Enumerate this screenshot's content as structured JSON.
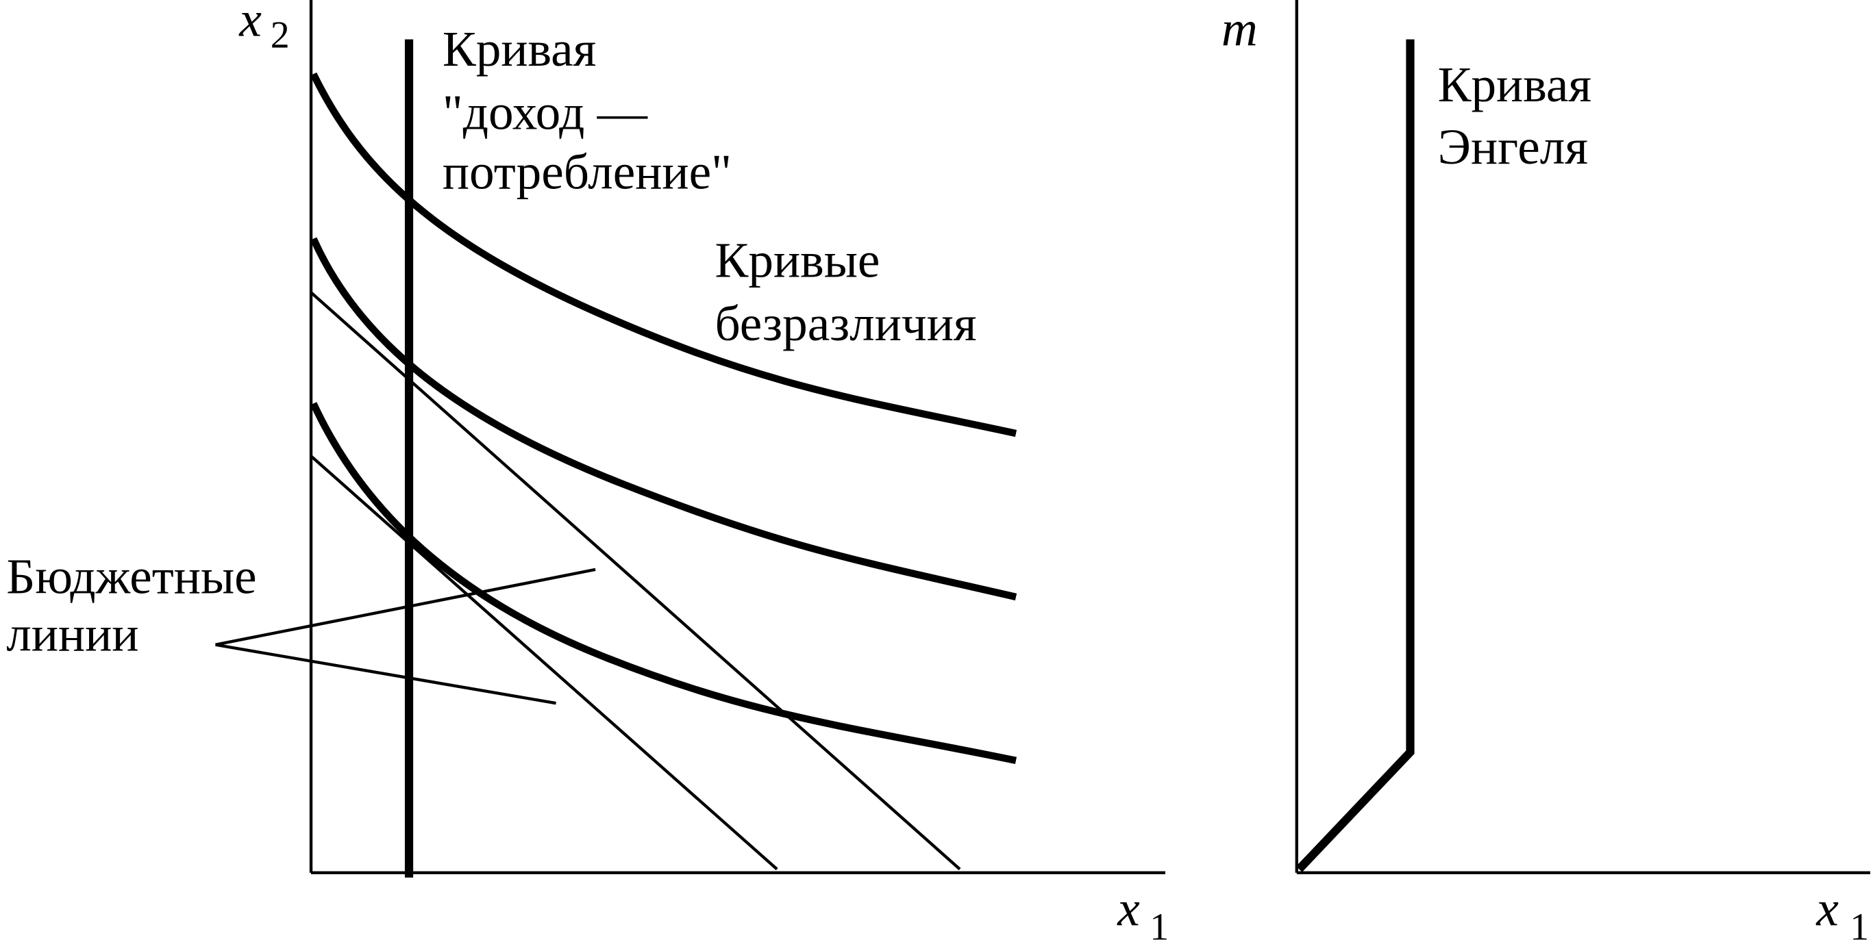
{
  "left_panel": {
    "y_axis_label": {
      "var": "x",
      "sub": "2"
    },
    "x_axis_label": {
      "var": "x",
      "sub": "1"
    },
    "icc_label": [
      "Кривая",
      "\"доход —",
      "потребление\""
    ],
    "indifference_label": [
      "Кривые",
      "безразличия"
    ],
    "budget_label": [
      "Бюджетные",
      "линии"
    ]
  },
  "right_panel": {
    "y_axis_label": "m",
    "x_axis_label": {
      "var": "x",
      "sub": "1"
    },
    "engel_label": [
      "Кривая",
      "Энгеля"
    ]
  }
}
